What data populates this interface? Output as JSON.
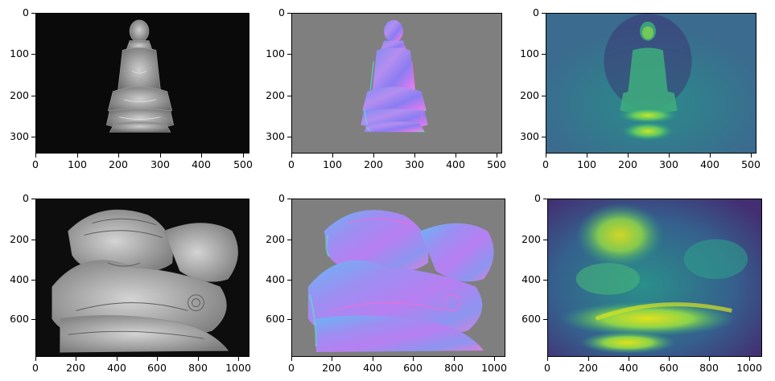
{
  "figure": {
    "panels": [
      {
        "id": "buddha-input",
        "row": 1,
        "col": 1,
        "image": "grayscale photograph of seated Buddha statue",
        "xticks": [
          "0",
          "100",
          "200",
          "300",
          "400",
          "500"
        ],
        "yticks": [
          "0",
          "100",
          "200",
          "300"
        ]
      },
      {
        "id": "buddha-normal-map",
        "row": 1,
        "col": 2,
        "image": "surface normal map of seated Buddha statue on gray background",
        "xticks": [
          "0",
          "100",
          "200",
          "300",
          "400",
          "500"
        ],
        "yticks": [
          "0",
          "100",
          "200",
          "300"
        ]
      },
      {
        "id": "buddha-heatmap",
        "row": 1,
        "col": 3,
        "image": "viridis colormap map of seated Buddha statue",
        "xticks": [
          "0",
          "100",
          "200",
          "300",
          "400",
          "500"
        ],
        "yticks": [
          "0",
          "100",
          "200",
          "300"
        ]
      },
      {
        "id": "reading-figure-input",
        "row": 2,
        "col": 1,
        "image": "grayscale photograph of carved figure reading a scroll",
        "xticks": [
          "0",
          "200",
          "400",
          "600",
          "800",
          "1000"
        ],
        "yticks": [
          "0",
          "200",
          "400",
          "600"
        ]
      },
      {
        "id": "reading-figure-normal-map",
        "row": 2,
        "col": 2,
        "image": "surface normal map of carved figure reading a scroll",
        "xticks": [
          "0",
          "200",
          "400",
          "600",
          "800",
          "1000"
        ],
        "yticks": [
          "0",
          "200",
          "400",
          "600"
        ]
      },
      {
        "id": "reading-figure-heatmap",
        "row": 2,
        "col": 3,
        "image": "viridis colormap map of carved figure reading a scroll",
        "xticks": [
          "0",
          "200",
          "400",
          "600",
          "800",
          "1000"
        ],
        "yticks": [
          "0",
          "200",
          "400",
          "600"
        ]
      }
    ]
  }
}
